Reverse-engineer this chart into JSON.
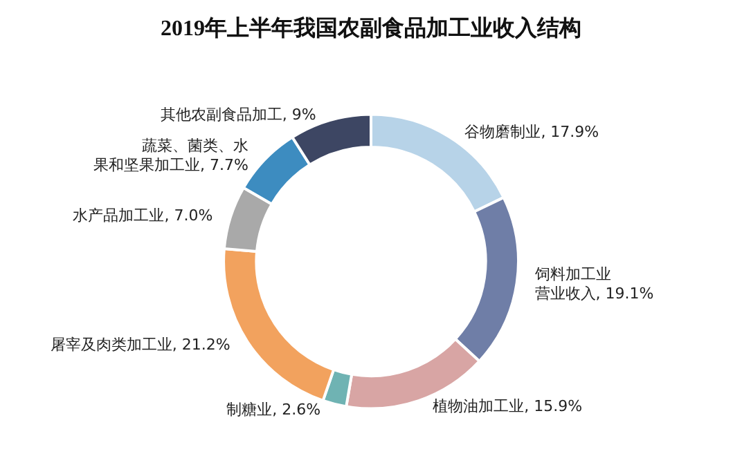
{
  "chart_data": {
    "type": "donut",
    "title": "2019年上半年我国农副食品加工业收入结构",
    "categories": [
      "谷物磨制业",
      "饲料加工业营业收入",
      "植物油加工业",
      "制糖业",
      "屠宰及肉类加工业",
      "水产品加工业",
      "蔬菜、菌类、水果和坚果加工业",
      "其他农副食品加工"
    ],
    "values": [
      17.9,
      19.1,
      15.9,
      2.6,
      21.2,
      7.0,
      7.7,
      9
    ],
    "value_labels": [
      "17.9%",
      "19.1%",
      "15.9%",
      "2.6%",
      "21.2%",
      "7.0%",
      "7.7%",
      "9%"
    ],
    "colors": [
      "#b7d3e8",
      "#6f7ea7",
      "#d8a5a4",
      "#6fb3b3",
      "#f2a25e",
      "#a9a9a9",
      "#3d8cc0",
      "#3d4663"
    ],
    "legend": false
  }
}
